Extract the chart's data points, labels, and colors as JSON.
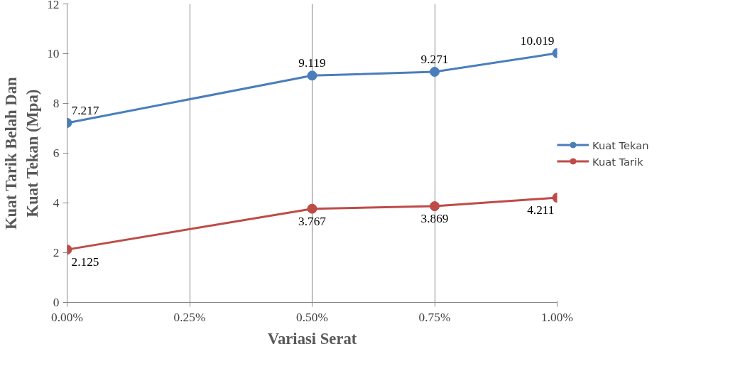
{
  "chart_data": {
    "type": "line",
    "xlabel": "Variasi Serat",
    "ylabel": "Kuat Tarik Belah Dan\nKuat Tekan (Mpa)",
    "x": [
      0,
      0.5,
      0.75,
      1.0
    ],
    "series": [
      {
        "name": "Kuat Tekan",
        "color": "#4a7ebb",
        "values": [
          7.217,
          9.119,
          9.271,
          10.019
        ]
      },
      {
        "name": "Kuat Tarik",
        "color": "#be4b48",
        "values": [
          2.125,
          3.767,
          3.869,
          4.211
        ]
      }
    ],
    "xlim": [
      0,
      1
    ],
    "xticks": [
      {
        "value": 0,
        "label": "0.00%"
      },
      {
        "value": 0.25,
        "label": "0.25%"
      },
      {
        "value": 0.5,
        "label": "0.50%"
      },
      {
        "value": 0.75,
        "label": "0.75%"
      },
      {
        "value": 1.0,
        "label": "1.00%"
      }
    ],
    "ylim": [
      0,
      12
    ],
    "yticks": [
      0,
      2,
      4,
      6,
      8,
      10,
      12
    ],
    "grid": "x",
    "legend": "right",
    "marker": "circle",
    "line_style": "solid",
    "data_labels": true
  }
}
